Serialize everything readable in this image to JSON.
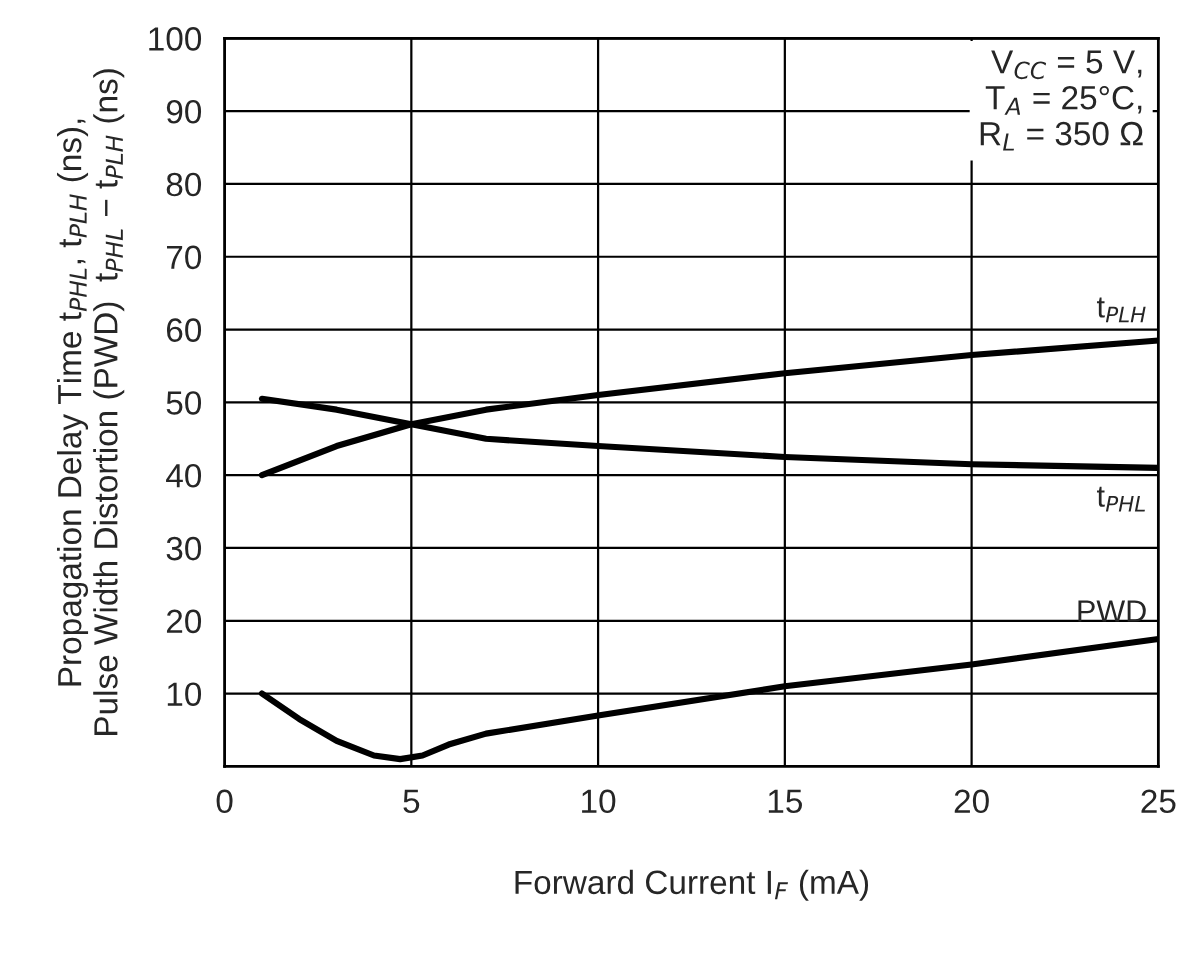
{
  "chart_data": {
    "type": "line",
    "xlabel": "Forward Current I$_{F}$ (mA)",
    "ylabel": "Propagation Delay Time t$_{PHL}$, t$_{PLH}$ (ns),\nPulse Width Distortion (PWD)  t$_{PHL}$ − t$_{PLH}$ (ns)",
    "annotations": [
      "V$_{CC}$ = 5 V,\nT$_{A}$ = 25°C,\nR$_{L}$ = 350 Ω"
    ],
    "series": [
      {
        "name": "t$_{PLH}$",
        "color": "#000000",
        "x": [
          1,
          3,
          5,
          7,
          10,
          15,
          20,
          25
        ],
        "values": [
          40,
          44,
          47,
          49,
          51,
          54,
          56.5,
          58.5
        ]
      },
      {
        "name": "t$_{PHL}$",
        "color": "#000000",
        "x": [
          1,
          3,
          5,
          7,
          10,
          15,
          20,
          25
        ],
        "values": [
          50.5,
          49,
          47,
          45,
          44,
          42.5,
          41.5,
          41
        ]
      },
      {
        "name": "PWD",
        "color": "#000000",
        "x": [
          1,
          2,
          3,
          4,
          4.7,
          5.3,
          6,
          7,
          10,
          15,
          20,
          25
        ],
        "values": [
          10,
          6.5,
          3.5,
          1.5,
          1,
          1.5,
          3,
          4.5,
          7,
          11,
          14,
          17.5
        ]
      }
    ],
    "xlim": [
      0,
      25
    ],
    "xticks": [
      0,
      5,
      10,
      15,
      20,
      25
    ],
    "ylim": [
      0,
      100
    ],
    "yticks": [
      {
        "value": 0,
        "label": null
      },
      10,
      20,
      30,
      40,
      50,
      60,
      70,
      80,
      90,
      100
    ],
    "grid": true,
    "legend": false,
    "marker": "none",
    "line_style": "solid"
  }
}
